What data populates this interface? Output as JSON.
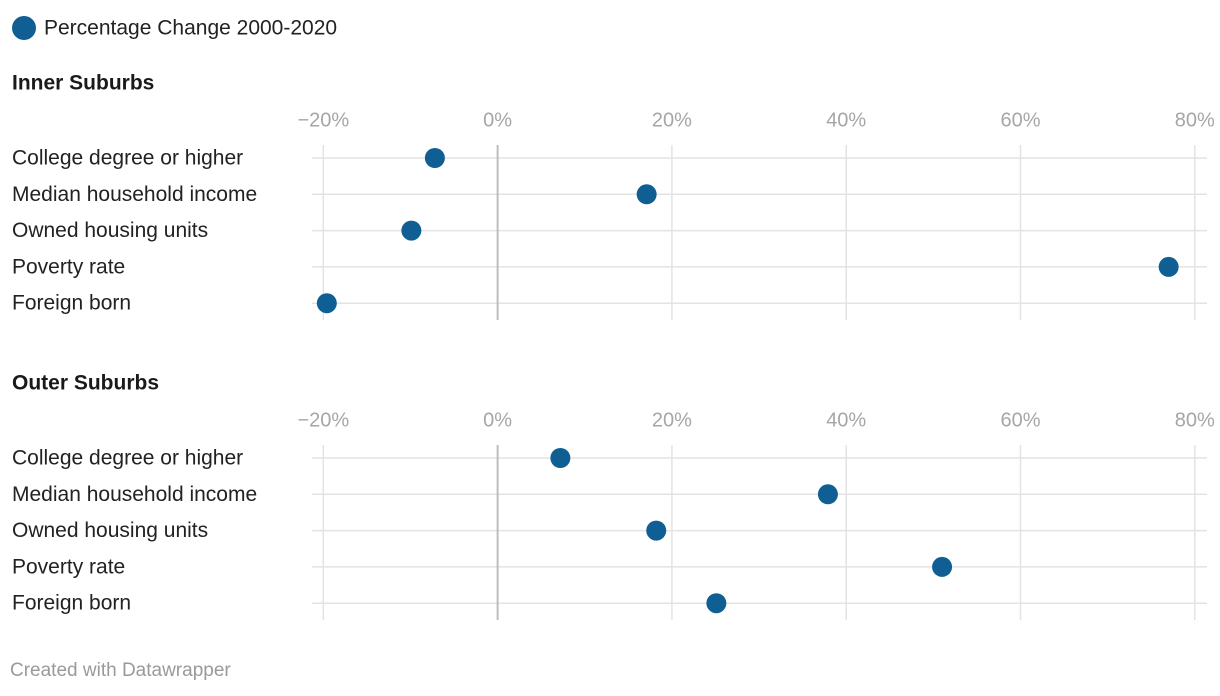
{
  "legend_note": null,
  "chart_data": [
    {
      "type": "dot",
      "title": "Inner Suburbs",
      "categories": [
        "College degree or higher",
        "Median household income",
        "Owned housing units",
        "Poverty rate",
        "Foreign born"
      ],
      "series": [
        {
          "name": "Percentage Change 2000-2020",
          "color": "#0f5f94",
          "values": [
            -7.2,
            17.1,
            -9.9,
            77.0,
            -19.6
          ]
        }
      ],
      "xlim": [
        -21.3,
        81.4
      ],
      "xticks": [
        {
          "value": -20,
          "label": "−20%"
        },
        {
          "value": 0,
          "label": "0%"
        },
        {
          "value": 20,
          "label": "20%"
        },
        {
          "value": 40,
          "label": "40%"
        },
        {
          "value": 60,
          "label": "60%"
        },
        {
          "value": 80,
          "label": "80%"
        }
      ],
      "grid": true
    },
    {
      "type": "dot",
      "title": "Outer Suburbs",
      "categories": [
        "College degree or higher",
        "Median household income",
        "Owned housing units",
        "Poverty rate",
        "Foreign born"
      ],
      "series": [
        {
          "color": "#0f5f94",
          "values": [
            7.2,
            37.9,
            18.2,
            51.0,
            25.1
          ]
        }
      ],
      "xlim": [
        -21.3,
        81.4
      ],
      "xticks": [
        {
          "value": -20,
          "label": "−20%"
        },
        {
          "value": 0,
          "label": "0%"
        },
        {
          "value": 20,
          "label": "20%"
        },
        {
          "value": 40,
          "label": "40%"
        },
        {
          "value": 60,
          "label": "60%"
        },
        {
          "value": 80,
          "label": "80%"
        }
      ],
      "grid": true
    }
  ],
  "footer": "Created with Datawrapper"
}
